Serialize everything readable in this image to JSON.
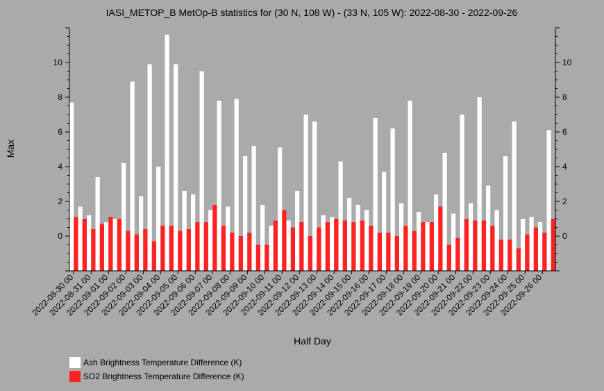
{
  "chart_data": {
    "type": "bar",
    "title": "IASI_METOP_B MetOp-B statistics for (30 N, 108 W) - (33 N, 105 W): 2022-08-30 - 2022-09-26",
    "xlabel": "Half Day",
    "ylabel": "Max",
    "ylim": [
      -2,
      12
    ],
    "yticks": [
      0,
      2,
      4,
      6,
      8,
      10
    ],
    "grid": false,
    "legend_position": "bottom-left",
    "categories": [
      "2022-08-30 00",
      "2022-08-30 12",
      "2022-08-31 00",
      "2022-08-31 12",
      "2022-09-01 00",
      "2022-09-01 12",
      "2022-09-02 00",
      "2022-09-02 12",
      "2022-09-03 00",
      "2022-09-03 12",
      "2022-09-04 00",
      "2022-09-04 12",
      "2022-09-05 00",
      "2022-09-05 12",
      "2022-09-06 00",
      "2022-09-06 12",
      "2022-09-07 00",
      "2022-09-07 12",
      "2022-09-08 00",
      "2022-09-08 12",
      "2022-09-09 00",
      "2022-09-09 12",
      "2022-09-10 00",
      "2022-09-10 12",
      "2022-09-11 00",
      "2022-09-11 12",
      "2022-09-12 00",
      "2022-09-12 12",
      "2022-09-13 00",
      "2022-09-13 12",
      "2022-09-14 00",
      "2022-09-14 12",
      "2022-09-15 00",
      "2022-09-15 12",
      "2022-09-16 00",
      "2022-09-16 12",
      "2022-09-17 00",
      "2022-09-17 12",
      "2022-09-18 00",
      "2022-09-18 12",
      "2022-09-19 00",
      "2022-09-19 12",
      "2022-09-20 00",
      "2022-09-20 12",
      "2022-09-21 00",
      "2022-09-21 12",
      "2022-09-22 00",
      "2022-09-22 12",
      "2022-09-23 00",
      "2022-09-23 12",
      "2022-09-24 00",
      "2022-09-24 12",
      "2022-09-25 00",
      "2022-09-25 12",
      "2022-09-26 00",
      "2022-09-26 12"
    ],
    "xtick_labels": [
      "2022-08-30 00",
      "2022-08-31 00",
      "2022-09-01 00",
      "2022-09-02 00",
      "2022-09-03 00",
      "2022-09-04 00",
      "2022-09-05 00",
      "2022-09-06 00",
      "2022-09-07 00",
      "2022-09-08 00",
      "2022-09-09 00",
      "2022-09-10 00",
      "2022-09-11 00",
      "2022-09-12 00",
      "2022-09-13 00",
      "2022-09-14 00",
      "2022-09-15 00",
      "2022-09-16 00",
      "2022-09-17 00",
      "2022-09-18 00",
      "2022-09-19 00",
      "2022-09-20 00",
      "2022-09-21 00",
      "2022-09-22 00",
      "2022-09-23 00",
      "2022-09-24 00",
      "2022-09-25 00",
      "2022-09-26 00"
    ],
    "series": [
      {
        "name": "Ash Brightness Temperature Difference (K)",
        "color": "#ffffff",
        "values": [
          7.7,
          1.7,
          1.2,
          3.4,
          0.8,
          1.0,
          4.2,
          8.9,
          2.3,
          9.9,
          4.0,
          11.6,
          9.9,
          2.6,
          2.4,
          9.5,
          1.5,
          7.8,
          1.7,
          7.9,
          4.6,
          5.2,
          1.8,
          0.6,
          5.1,
          0.9,
          2.6,
          7.0,
          6.6,
          1.2,
          1.1,
          4.3,
          2.2,
          1.8,
          1.5,
          6.8,
          3.7,
          6.2,
          1.9,
          7.8,
          1.4,
          0.8,
          2.4,
          4.8,
          1.3,
          7.0,
          1.9,
          8.0,
          2.9,
          1.5,
          4.6,
          6.6,
          1.0,
          1.1,
          0.8,
          6.1
        ]
      },
      {
        "name": "SO2 Brightness Temperature Difference (K)",
        "color": "#ff2222",
        "values": [
          1.1,
          1.0,
          0.4,
          0.7,
          1.1,
          1.0,
          0.3,
          0.1,
          0.4,
          -0.3,
          0.6,
          0.6,
          0.3,
          0.4,
          0.8,
          0.8,
          1.8,
          0.6,
          0.2,
          0.0,
          0.2,
          -0.5,
          -0.5,
          0.9,
          1.5,
          0.5,
          0.8,
          0.0,
          0.5,
          0.8,
          1.0,
          0.9,
          0.8,
          0.9,
          0.6,
          0.2,
          0.2,
          0.0,
          0.6,
          0.3,
          0.8,
          0.8,
          1.7,
          -0.5,
          -0.1,
          1.0,
          0.9,
          0.9,
          0.6,
          -0.2,
          -0.2,
          -0.7,
          0.1,
          0.5,
          0.2,
          1.0
        ]
      }
    ]
  }
}
